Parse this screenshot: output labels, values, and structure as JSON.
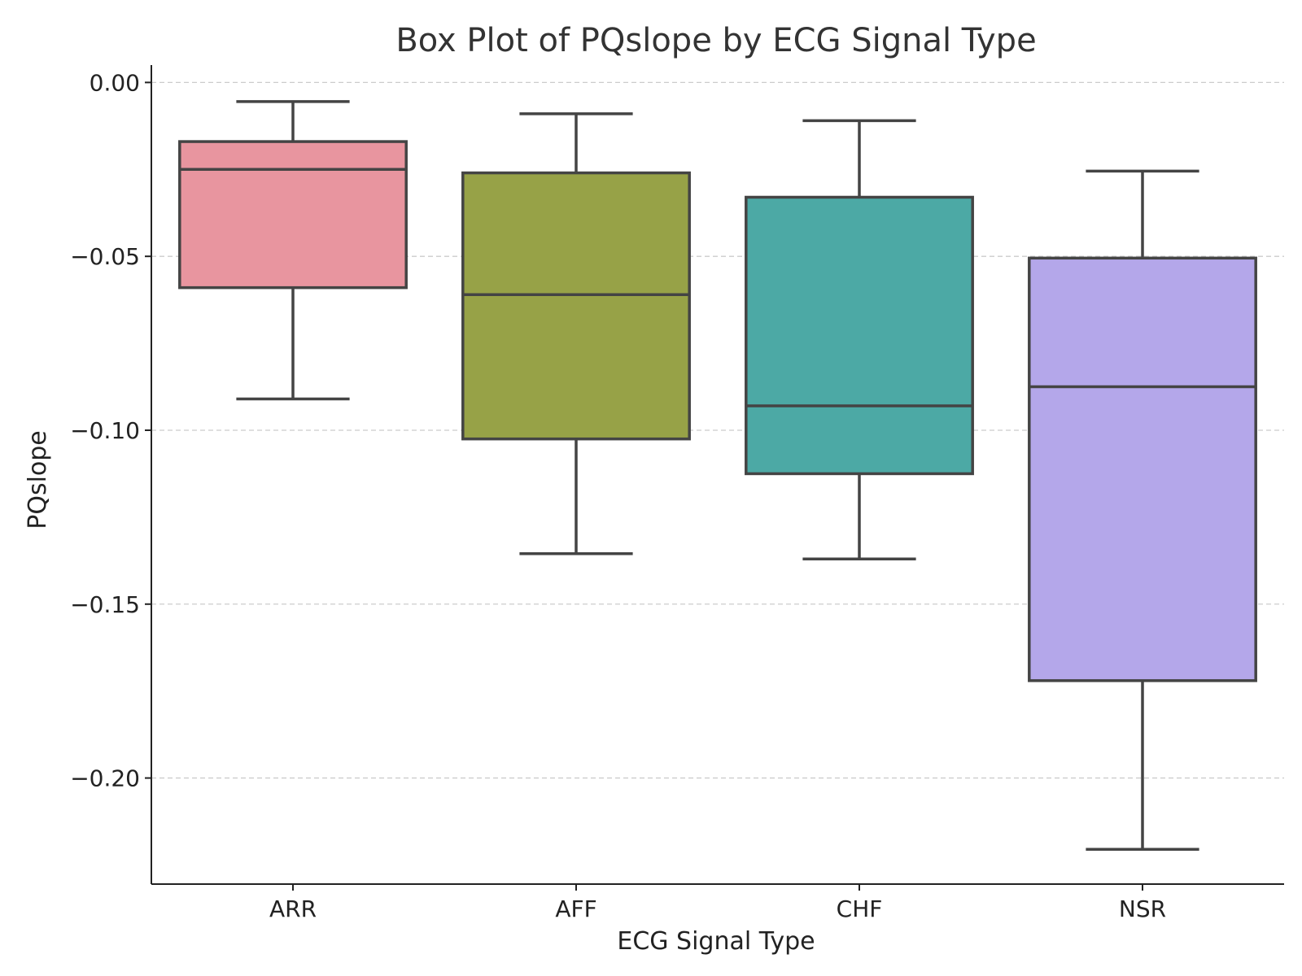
{
  "chart_data": {
    "type": "box",
    "title": "Box Plot of PQslope by ECG Signal Type",
    "xlabel": "ECG Signal Type",
    "ylabel": "PQslope",
    "ylim": [
      -0.2305,
      0.005
    ],
    "yticks": [
      0.0,
      -0.05,
      -0.1,
      -0.15,
      -0.2
    ],
    "ytick_labels": [
      "0.00",
      "−0.05",
      "−0.10",
      "−0.15",
      "−0.20"
    ],
    "grid": "horizontal-dashed",
    "categories": [
      "ARR",
      "AFF",
      "CHF",
      "NSR"
    ],
    "colors": [
      "#e8959f",
      "#97a247",
      "#4ca9a5",
      "#b4a7ea"
    ],
    "boxes": [
      {
        "label": "ARR",
        "whislo": -0.091,
        "q1": -0.059,
        "med": -0.025,
        "q3": -0.017,
        "whishi": -0.0055
      },
      {
        "label": "AFF",
        "whislo": -0.1355,
        "q1": -0.1025,
        "med": -0.061,
        "q3": -0.026,
        "whishi": -0.009
      },
      {
        "label": "CHF",
        "whislo": -0.137,
        "q1": -0.1125,
        "med": -0.093,
        "q3": -0.033,
        "whishi": -0.011
      },
      {
        "label": "NSR",
        "whislo": -0.2205,
        "q1": -0.172,
        "med": -0.0875,
        "q3": -0.0505,
        "whishi": -0.0255
      }
    ]
  }
}
